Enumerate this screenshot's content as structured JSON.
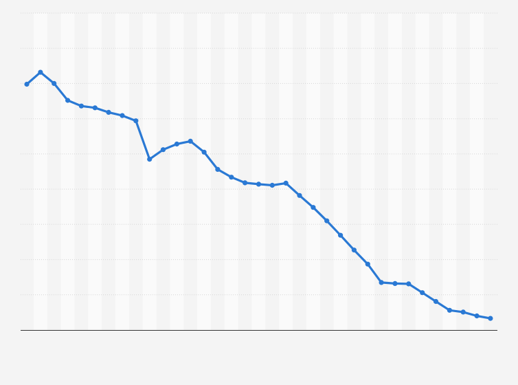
{
  "colors": {
    "background": "#f4f4f4",
    "band": "#fafafa",
    "grid": "#d6d6d6",
    "axis": "#333333",
    "series": "#2a79d4"
  },
  "chart_data": {
    "type": "line",
    "title": "",
    "xlabel": "",
    "ylabel": "",
    "grid": true,
    "legend": "none",
    "x": [
      1,
      2,
      3,
      4,
      5,
      6,
      7,
      8,
      9,
      10,
      11,
      12,
      13,
      14,
      15,
      16,
      17,
      18,
      19,
      20,
      21,
      22,
      23,
      24,
      25,
      26,
      27,
      28,
      29,
      30,
      31,
      32,
      33,
      34,
      35
    ],
    "ylim": [
      0,
      9
    ],
    "series": [
      {
        "name": "",
        "values": [
          6.98,
          7.32,
          7.0,
          6.52,
          6.36,
          6.31,
          6.18,
          6.09,
          5.94,
          4.85,
          5.12,
          5.28,
          5.36,
          5.05,
          4.56,
          4.34,
          4.18,
          4.14,
          4.11,
          4.17,
          3.82,
          3.48,
          3.1,
          2.69,
          2.27,
          1.87,
          1.35,
          1.32,
          1.31,
          1.06,
          0.81,
          0.56,
          0.51,
          0.4,
          0.33
        ]
      }
    ]
  }
}
